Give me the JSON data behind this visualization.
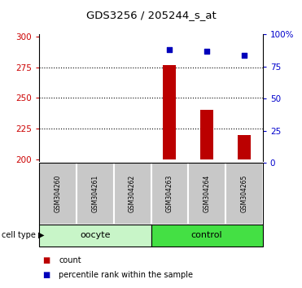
{
  "title": "GDS3256 / 205244_s_at",
  "samples": [
    "GSM304260",
    "GSM304261",
    "GSM304262",
    "GSM304263",
    "GSM304264",
    "GSM304265"
  ],
  "bar_values": [
    null,
    null,
    null,
    277,
    240,
    220
  ],
  "scatter_values": [
    null,
    null,
    null,
    88,
    87,
    84
  ],
  "ylim_left": [
    197,
    302
  ],
  "ylim_right": [
    0,
    100
  ],
  "yticks_left": [
    200,
    225,
    250,
    275,
    300
  ],
  "yticks_right": [
    0,
    25,
    50,
    75,
    100
  ],
  "ytick_labels_right": [
    "0",
    "25",
    "50",
    "75",
    "100%"
  ],
  "bar_color": "#bb0000",
  "scatter_color": "#0000bb",
  "bar_bottom": 200,
  "grid_lines": [
    225,
    250,
    275
  ],
  "cell_types": [
    {
      "label": "oocyte",
      "start": 0,
      "end": 3,
      "color": "#c8f5c8"
    },
    {
      "label": "control",
      "start": 3,
      "end": 6,
      "color": "#44e044"
    }
  ],
  "cell_type_label": "cell type",
  "legend_count_label": "count",
  "legend_percentile_label": "percentile rank within the sample",
  "ylabel_left_color": "#cc0000",
  "ylabel_right_color": "#0000cc",
  "bg_color": "#ffffff",
  "tick_area_color": "#c8c8c8"
}
